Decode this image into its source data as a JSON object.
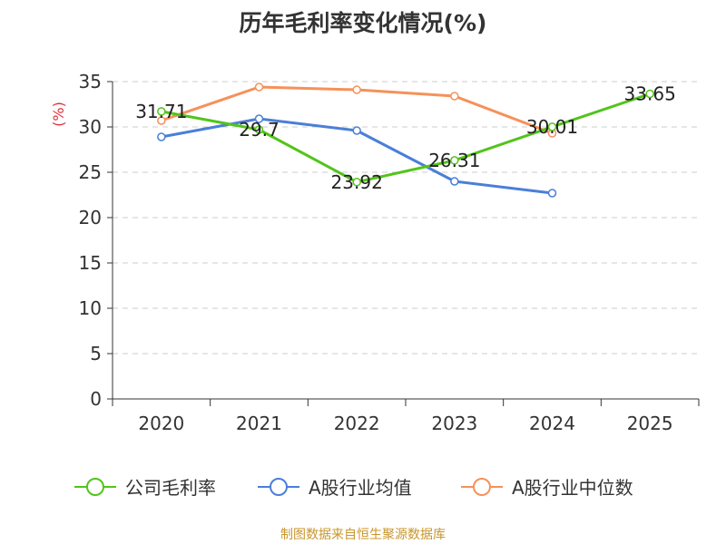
{
  "footer": "制图数据来自恒生聚源数据库",
  "chart_data": {
    "type": "line",
    "title": "历年毛利率变化情况(%)",
    "ylabel": "(%)",
    "xlabel": "",
    "categories": [
      "2020",
      "2021",
      "2022",
      "2023",
      "2024",
      "2025"
    ],
    "ylim": [
      0,
      35
    ],
    "yticks": [
      0,
      5,
      10,
      15,
      20,
      25,
      30,
      35
    ],
    "grid": true,
    "legend_position": "bottom",
    "series": [
      {
        "name": "公司毛利率",
        "color": "#52c41a",
        "values": [
          31.71,
          29.7,
          23.92,
          26.31,
          30.01,
          33.65
        ],
        "labels": [
          "31.71",
          "29.7",
          "23.92",
          "26.31",
          "30.01",
          "33.65"
        ]
      },
      {
        "name": "A股行业均值",
        "color": "#4a7fd8",
        "values": [
          28.9,
          30.9,
          29.6,
          24.0,
          22.7,
          null
        ]
      },
      {
        "name": "A股行业中位数",
        "color": "#f5915a",
        "values": [
          30.7,
          34.4,
          34.1,
          33.4,
          29.3,
          null
        ]
      }
    ]
  }
}
